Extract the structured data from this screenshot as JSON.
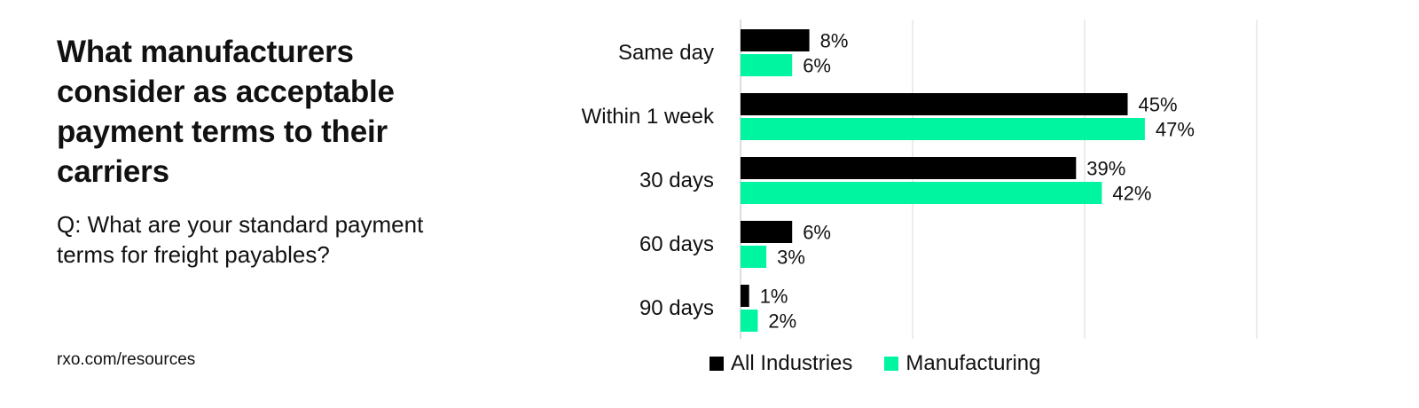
{
  "title": "What manufacturers consider as acceptable payment terms to their carriers",
  "subtitle": "Q: What are your standard payment terms for freight payables?",
  "source": "rxo.com/resources",
  "chart_data": {
    "type": "bar",
    "orientation": "horizontal",
    "categories": [
      "Same day",
      "Within 1 week",
      "30 days",
      "60 days",
      "90 days"
    ],
    "series": [
      {
        "name": "All Industries",
        "color": "#000000",
        "values": [
          8,
          45,
          39,
          6,
          1
        ]
      },
      {
        "name": "Manufacturing",
        "color": "#00F5A0",
        "values": [
          6,
          47,
          42,
          3,
          2
        ]
      }
    ],
    "value_suffix": "%",
    "xlim": [
      0,
      60
    ],
    "grid": true,
    "legend_position": "bottom"
  }
}
